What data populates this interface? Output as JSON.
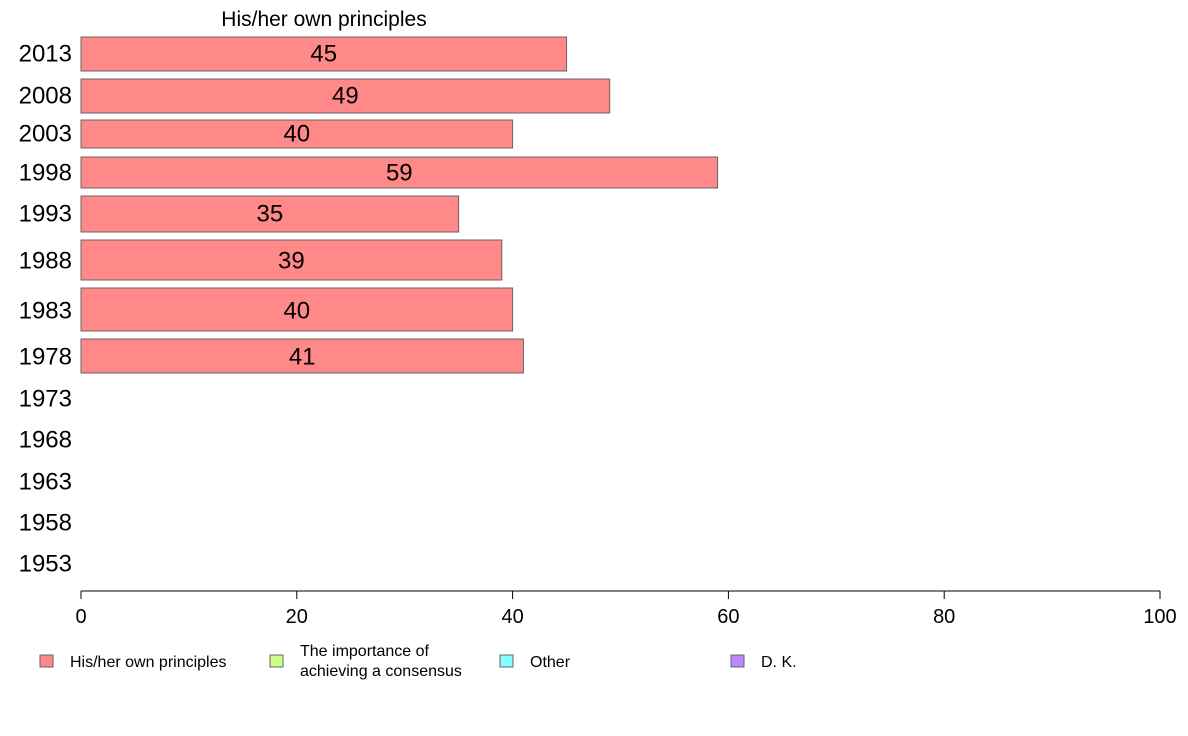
{
  "chart_data": {
    "type": "bar",
    "orientation": "horizontal",
    "title": "His/her own principles",
    "categories": [
      "2013",
      "2008",
      "2003",
      "1998",
      "1993",
      "1988",
      "1983",
      "1978",
      "1973",
      "1968",
      "1963",
      "1958",
      "1953"
    ],
    "series": [
      {
        "name": "His/her own principles",
        "color": "#ff8888",
        "values": [
          45,
          49,
          40,
          59,
          35,
          39,
          40,
          41,
          null,
          null,
          null,
          null,
          null
        ],
        "labels": [
          "45",
          "49",
          "40",
          "59",
          "35",
          "39",
          "40",
          "41",
          "",
          "",
          "",
          "",
          ""
        ]
      }
    ],
    "xlim": [
      0,
      100
    ],
    "xticks": [
      0,
      20,
      40,
      60,
      80,
      100
    ],
    "xlabel": "",
    "ylabel": "",
    "grid": false,
    "legend_position": "bottom",
    "legend": [
      {
        "label": "His/her own principles",
        "color": "#ff8888"
      },
      {
        "label": "The importance of achieving a consensus",
        "lines": [
          "The importance of",
          "achieving a consensus"
        ],
        "color": "#ccff88"
      },
      {
        "label": "Other",
        "color": "#88ffff"
      },
      {
        "label": "D. K.",
        "color": "#bb88ff"
      }
    ]
  }
}
